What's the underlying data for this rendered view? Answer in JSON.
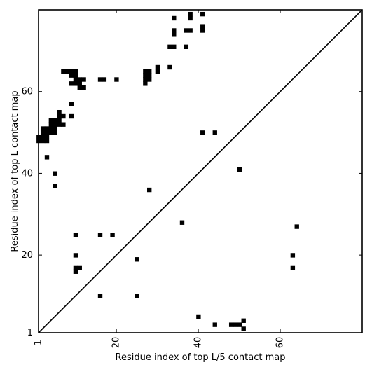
{
  "chart_data": {
    "type": "heatmap",
    "title": "",
    "xlabel": "Residue index of top L/5 contact map",
    "ylabel": "Residue index of top L contact map",
    "xlim": [
      1,
      80
    ],
    "ylim": [
      1,
      80
    ],
    "xticks": [
      1,
      20,
      40,
      60
    ],
    "yticks": [
      1,
      20,
      40,
      60
    ],
    "grid": false,
    "diagonal": {
      "from": [
        1,
        1
      ],
      "to": [
        80,
        80
      ]
    },
    "contacts_upper": [
      [
        1,
        48
      ],
      [
        2,
        48
      ],
      [
        3,
        48
      ],
      [
        1,
        49
      ],
      [
        2,
        49
      ],
      [
        3,
        49
      ],
      [
        2,
        50
      ],
      [
        3,
        50
      ],
      [
        4,
        50
      ],
      [
        5,
        50
      ],
      [
        2,
        51
      ],
      [
        3,
        51
      ],
      [
        4,
        51
      ],
      [
        5,
        51
      ],
      [
        4,
        52
      ],
      [
        5,
        52
      ],
      [
        6,
        52
      ],
      [
        7,
        52
      ],
      [
        4,
        53
      ],
      [
        5,
        53
      ],
      [
        6,
        53
      ],
      [
        6,
        54
      ],
      [
        7,
        54
      ],
      [
        6,
        55
      ],
      [
        9,
        54
      ],
      [
        9,
        57
      ],
      [
        7,
        65
      ],
      [
        8,
        65
      ],
      [
        9,
        65
      ],
      [
        10,
        65
      ],
      [
        9,
        64
      ],
      [
        10,
        64
      ],
      [
        10,
        63
      ],
      [
        11,
        63
      ],
      [
        12,
        63
      ],
      [
        9,
        62
      ],
      [
        10,
        62
      ],
      [
        11,
        62
      ],
      [
        11,
        61
      ],
      [
        12,
        61
      ],
      [
        16,
        63
      ],
      [
        17,
        63
      ],
      [
        20,
        63
      ],
      [
        27,
        65
      ],
      [
        28,
        65
      ],
      [
        27,
        64
      ],
      [
        28,
        64
      ],
      [
        27,
        63
      ],
      [
        28,
        63
      ],
      [
        27,
        62
      ],
      [
        30,
        66
      ],
      [
        30,
        65
      ],
      [
        33,
        66
      ],
      [
        33,
        71
      ],
      [
        34,
        71
      ],
      [
        34,
        74
      ],
      [
        34,
        75
      ],
      [
        34,
        78
      ],
      [
        37,
        71
      ],
      [
        37,
        75
      ],
      [
        38,
        75
      ],
      [
        38,
        78
      ],
      [
        38,
        79
      ],
      [
        41,
        75
      ],
      [
        41,
        76
      ],
      [
        41,
        79
      ],
      [
        41,
        50
      ],
      [
        44,
        50
      ],
      [
        3,
        44
      ],
      [
        5,
        40
      ],
      [
        5,
        37
      ],
      [
        28,
        36
      ]
    ],
    "contacts_lower": [
      [
        50,
        41
      ],
      [
        36,
        28
      ],
      [
        64,
        27
      ],
      [
        10,
        25
      ],
      [
        16,
        25
      ],
      [
        19,
        25
      ],
      [
        10,
        20
      ],
      [
        63,
        20
      ],
      [
        25,
        19
      ],
      [
        10,
        17
      ],
      [
        11,
        17
      ],
      [
        63,
        17
      ],
      [
        10,
        16
      ],
      [
        16,
        10
      ],
      [
        25,
        10
      ],
      [
        40,
        5
      ],
      [
        44,
        3
      ],
      [
        48,
        3
      ],
      [
        49,
        3
      ],
      [
        50,
        3
      ],
      [
        51,
        4
      ],
      [
        51,
        2
      ]
    ]
  }
}
